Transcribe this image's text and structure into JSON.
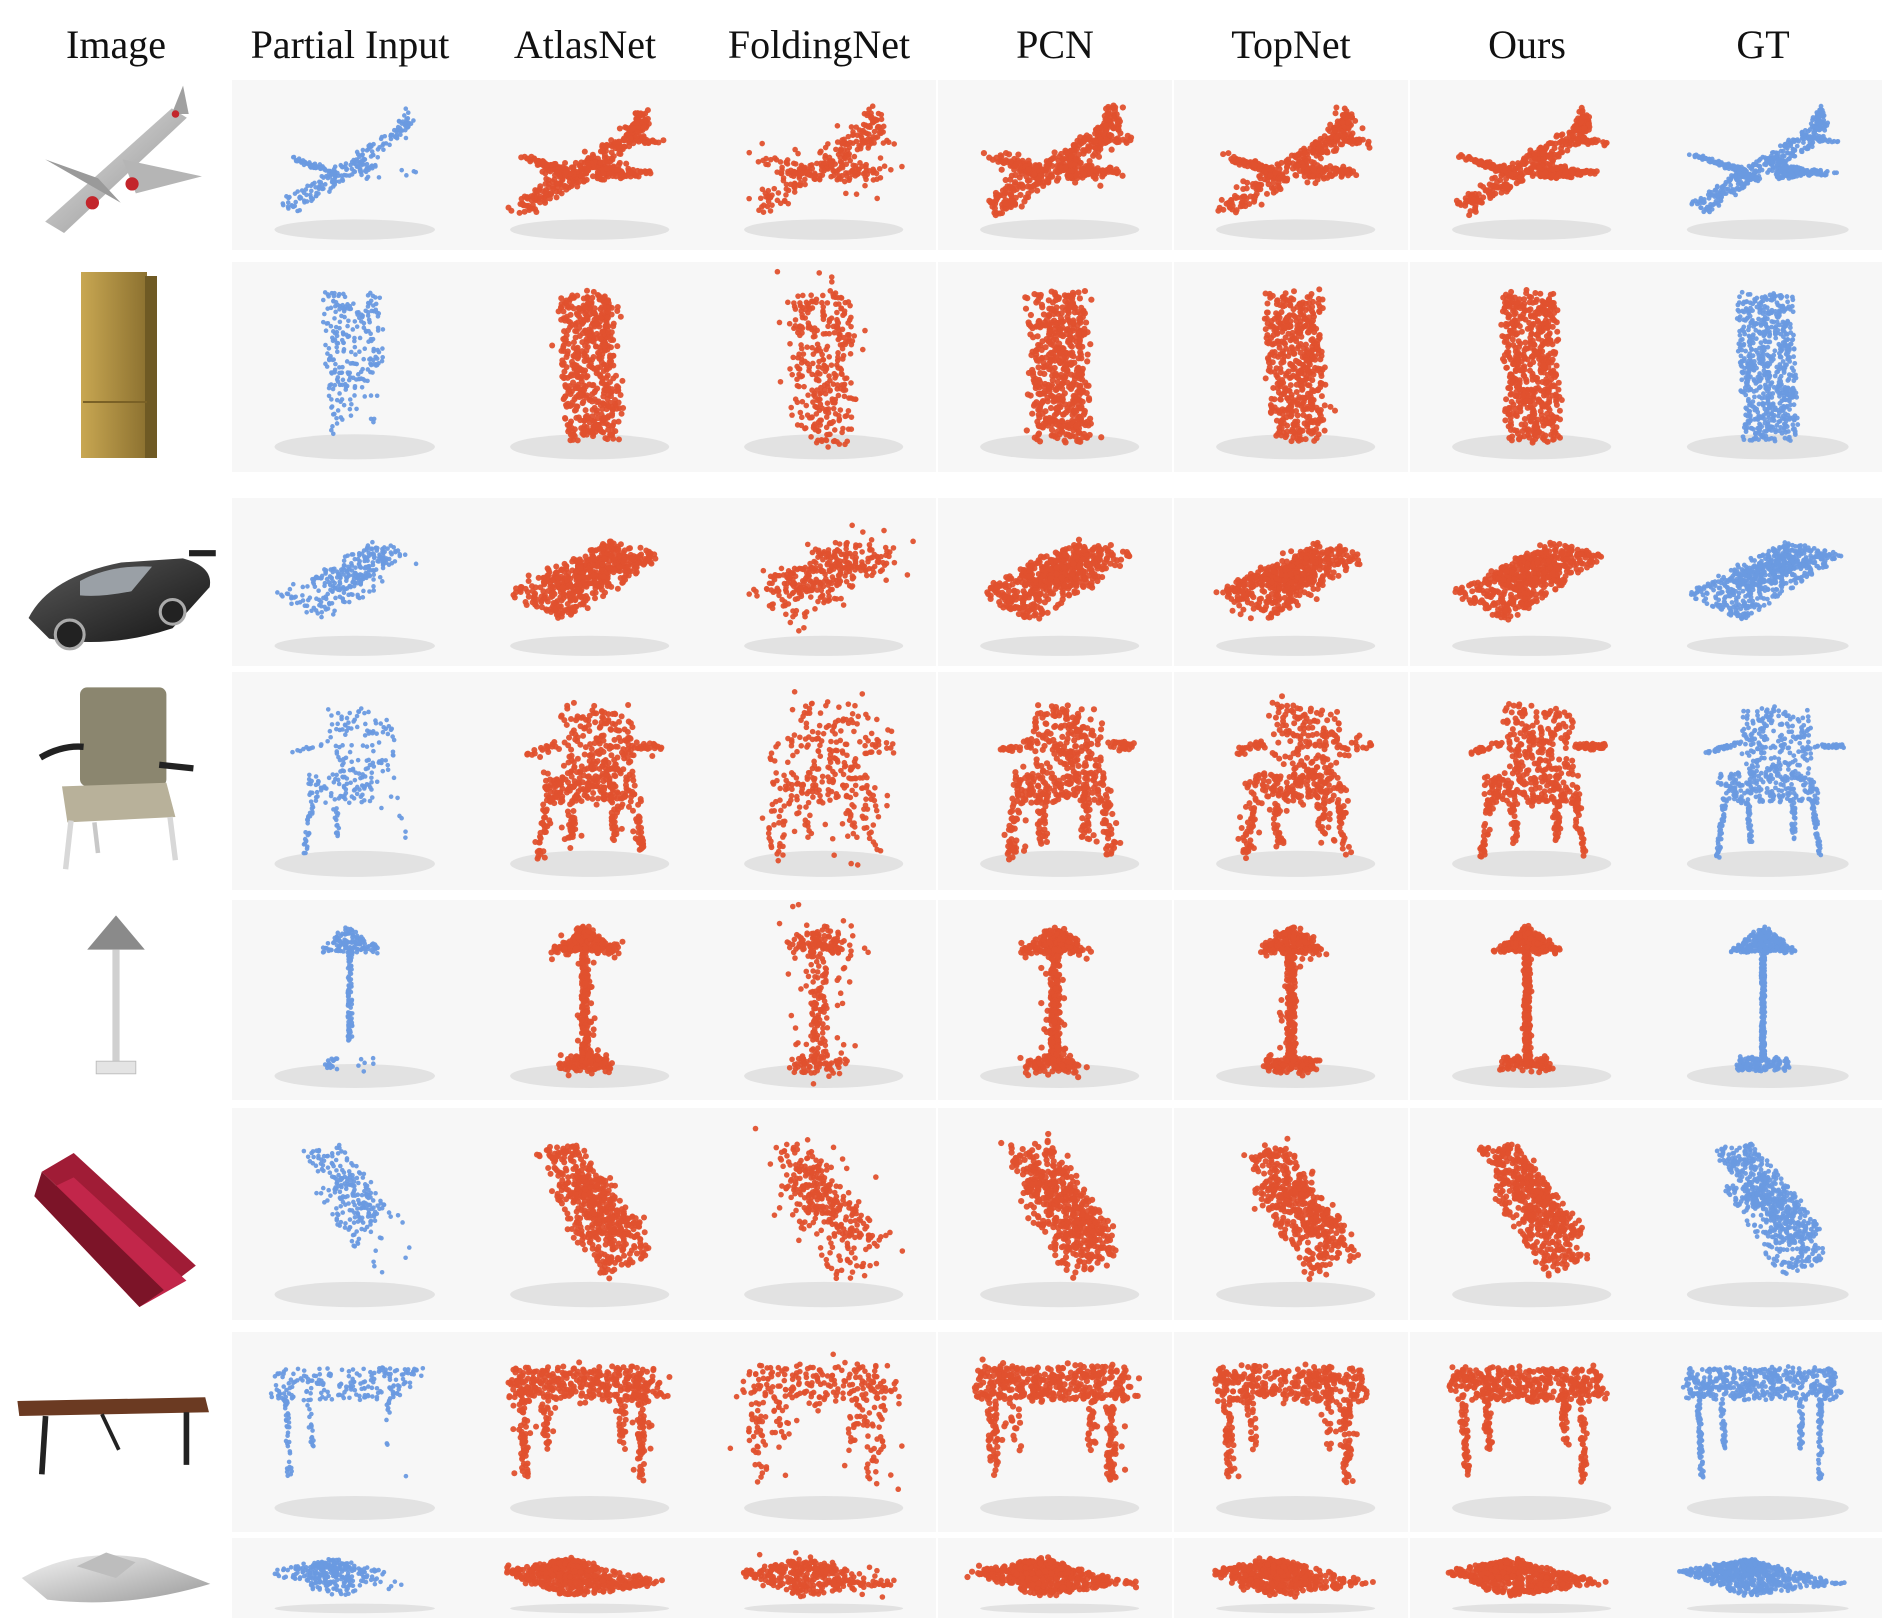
{
  "columns": [
    "Image",
    "Partial Input",
    "AtlasNet",
    "FoldingNet",
    "PCN",
    "TopNet",
    "Ours",
    "GT"
  ],
  "rows": [
    {
      "object": "airplane-icon"
    },
    {
      "object": "cabinet-icon"
    },
    {
      "object": "car-icon"
    },
    {
      "object": "chair-icon"
    },
    {
      "object": "lamp-icon"
    },
    {
      "object": "sofa-icon"
    },
    {
      "object": "table-icon"
    },
    {
      "object": "boat-icon"
    }
  ],
  "colors": {
    "input_gt": "#6a9ae0",
    "prediction": "#e0512e",
    "background": "#ffffff"
  }
}
